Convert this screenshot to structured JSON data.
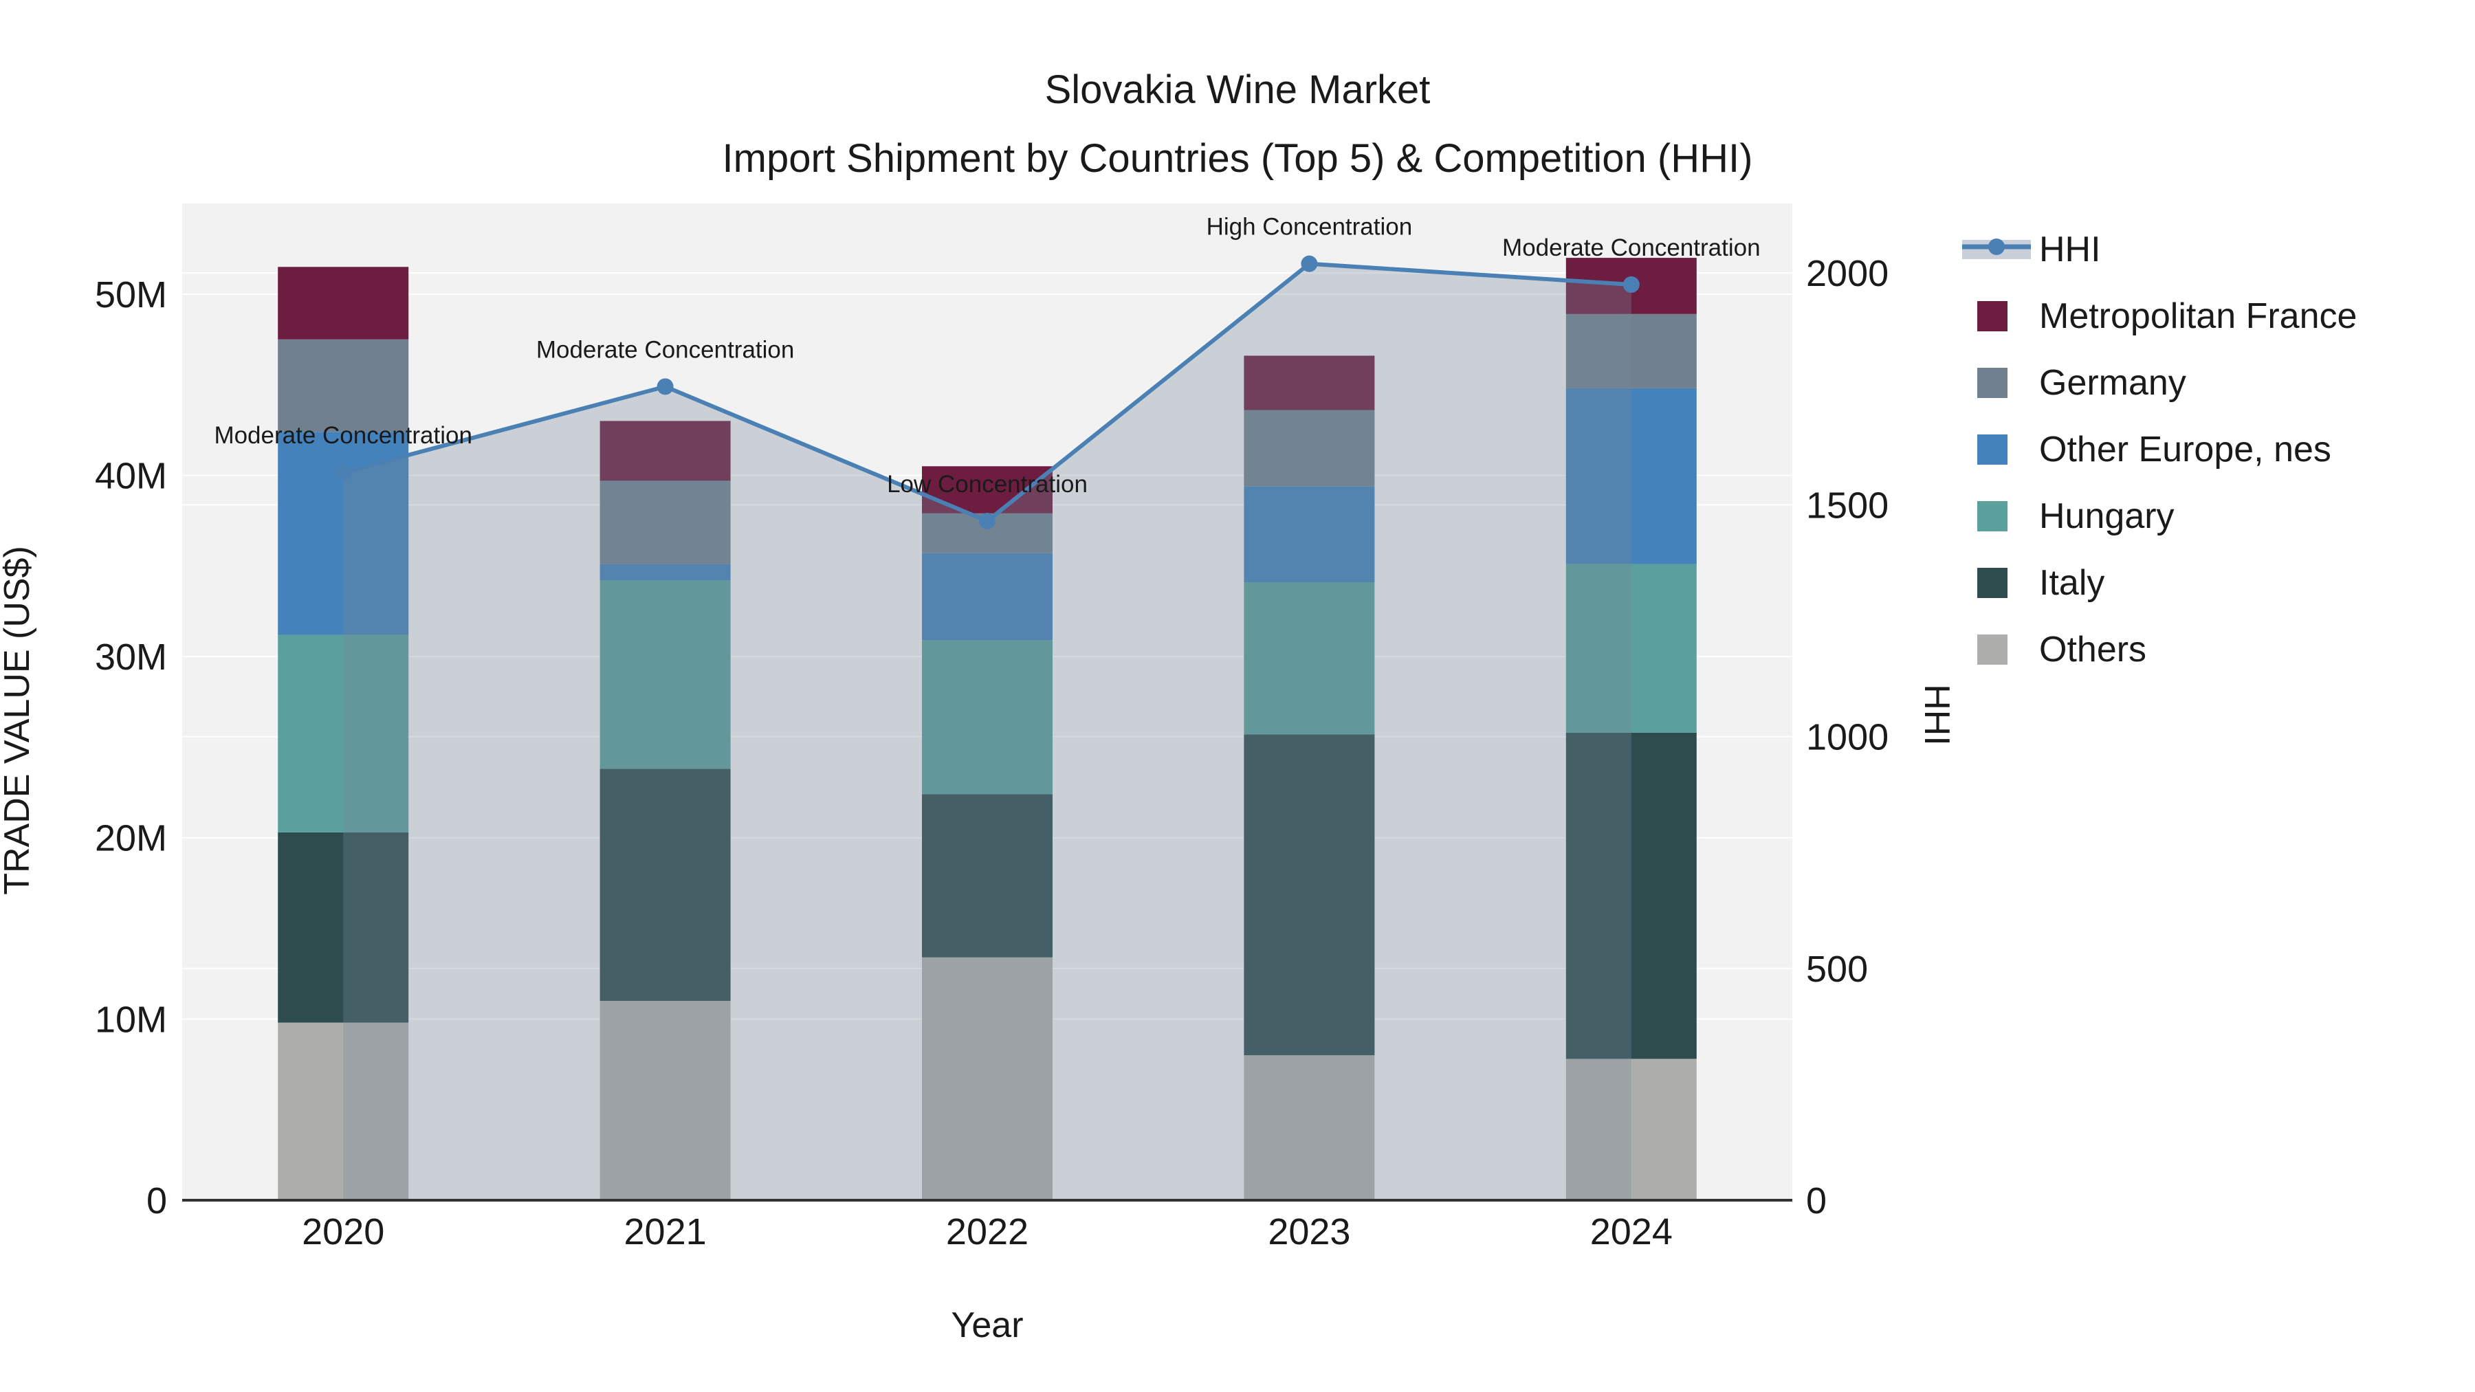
{
  "title": {
    "line1": "Slovakia Wine Market",
    "line2": "Import Shipment by Countries (Top 5) & Competition (HHI)"
  },
  "axes": {
    "x": {
      "label": "Year",
      "ticks": [
        "2020",
        "2021",
        "2022",
        "2023",
        "2024"
      ]
    },
    "y_left": {
      "label": "TRADE VALUE (US$)",
      "ticks": [
        "0",
        "10M",
        "20M",
        "30M",
        "40M",
        "50M"
      ],
      "tick_values": [
        0,
        10,
        20,
        30,
        40,
        50
      ]
    },
    "y_right": {
      "label": "HHI",
      "ticks": [
        "0",
        "500",
        "1000",
        "1500",
        "2000"
      ],
      "tick_values": [
        0,
        500,
        1000,
        1500,
        2000
      ]
    }
  },
  "legend": {
    "items": [
      {
        "label": "HHI",
        "type": "line"
      },
      {
        "label": "Metropolitan France",
        "type": "swatch",
        "color": "#6c1d40"
      },
      {
        "label": "Germany",
        "type": "swatch",
        "color": "#71808f"
      },
      {
        "label": "Other Europe, nes",
        "type": "swatch",
        "color": "#4382bb"
      },
      {
        "label": "Hungary",
        "type": "swatch",
        "color": "#5aa09d"
      },
      {
        "label": "Italy",
        "type": "swatch",
        "color": "#2e4c4e"
      },
      {
        "label": "Others",
        "type": "swatch",
        "color": "#aeafac"
      }
    ]
  },
  "colors": {
    "plot_background": "#f2f2f2",
    "gridline": "#ffffff",
    "axis_line": "#333333",
    "hhi_line": "#4a80b4",
    "hhi_area_fill": "rgba(119,136,153,0.32)",
    "legend_band": "#c9d0d9",
    "text": "#1a1a1a"
  },
  "chart_data": {
    "type": "combo: stacked-bar + line",
    "title": "Slovakia Wine Market — Import Shipment by Countries (Top 5) & Competition (HHI)",
    "categories": [
      "2020",
      "2021",
      "2022",
      "2023",
      "2024"
    ],
    "unit": "million US$",
    "xlabel": "Year",
    "ylabel": "TRADE VALUE (US$)",
    "y2label": "HHI",
    "ylim": [
      0,
      55
    ],
    "y2lim": [
      0,
      2150
    ],
    "grid": true,
    "legend_position": "right",
    "stack_order": "bottom-to-top",
    "series": [
      {
        "name": "Others",
        "color": "#aeafac",
        "values": [
          9.8,
          11.0,
          13.4,
          8.0,
          7.8
        ]
      },
      {
        "name": "Italy",
        "color": "#2e4c4e",
        "values": [
          10.5,
          12.8,
          9.0,
          17.7,
          18.0
        ]
      },
      {
        "name": "Hungary",
        "color": "#5aa09d",
        "values": [
          10.9,
          10.4,
          8.5,
          8.4,
          9.3
        ]
      },
      {
        "name": "Other Europe, nes",
        "color": "#4382bb",
        "values": [
          11.2,
          0.9,
          4.8,
          5.3,
          9.7
        ]
      },
      {
        "name": "Germany",
        "color": "#71808f",
        "values": [
          5.1,
          4.6,
          2.2,
          4.2,
          4.1
        ]
      },
      {
        "name": "Metropolitan France",
        "color": "#6c1d40",
        "values": [
          4.0,
          3.3,
          2.6,
          3.0,
          3.1
        ]
      }
    ],
    "totals": [
      51.5,
      43.0,
      40.5,
      46.6,
      52.0
    ],
    "line_series": {
      "name": "HHI",
      "values": [
        1570,
        1755,
        1465,
        2020,
        1975
      ],
      "color": "#4a80b4",
      "area_fill": "rgba(119,136,153,0.32)"
    },
    "annotations": [
      "Moderate Concentration",
      "Moderate Concentration",
      "Low Concentration",
      "High Concentration",
      "Moderate Concentration"
    ]
  }
}
